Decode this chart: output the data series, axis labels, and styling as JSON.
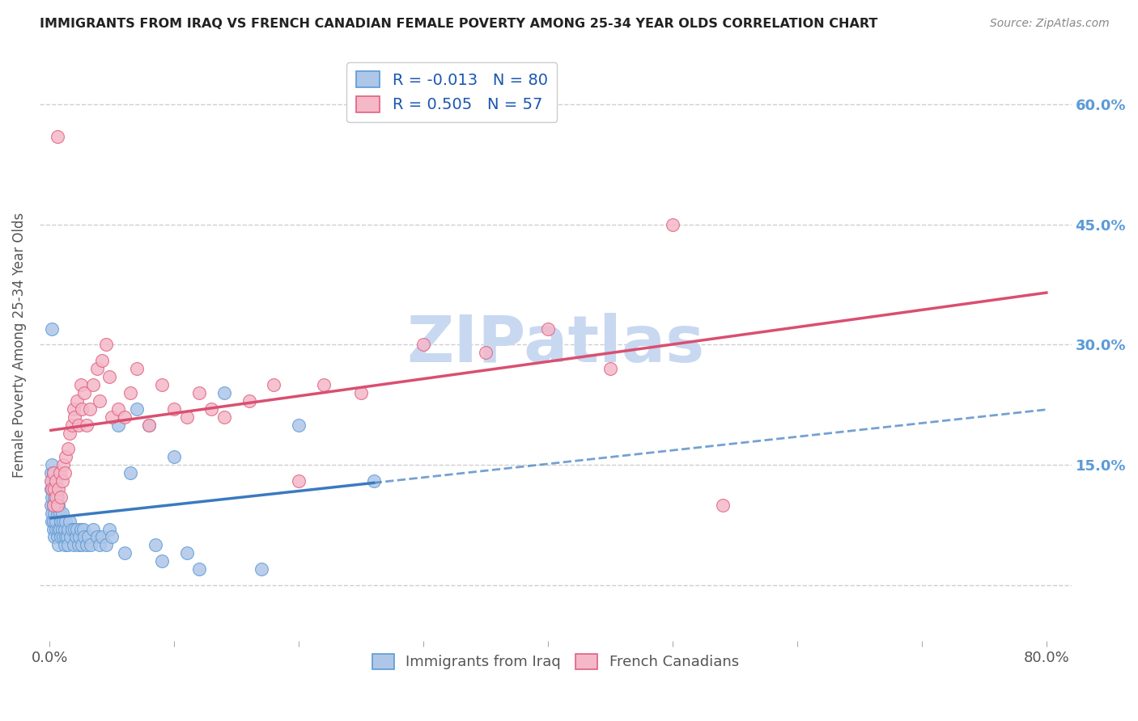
{
  "title": "IMMIGRANTS FROM IRAQ VS FRENCH CANADIAN FEMALE POVERTY AMONG 25-34 YEAR OLDS CORRELATION CHART",
  "source": "Source: ZipAtlas.com",
  "ylabel": "Female Poverty Among 25-34 Year Olds",
  "x_tick_pos": [
    0.0,
    0.1,
    0.2,
    0.3,
    0.4,
    0.5,
    0.6,
    0.7,
    0.8
  ],
  "x_tick_labels": [
    "0.0%",
    "",
    "",
    "",
    "",
    "",
    "",
    "",
    "80.0%"
  ],
  "y_tick_pos": [
    0.0,
    0.15,
    0.3,
    0.45,
    0.6
  ],
  "y_tick_labels_right": [
    "",
    "15.0%",
    "30.0%",
    "45.0%",
    "60.0%"
  ],
  "legend_series": [
    {
      "label": "Immigrants from Iraq",
      "R": "-0.013",
      "N": "80",
      "fill_color": "#aec6e8",
      "edge_color": "#5b9bd5",
      "line_color": "#3a7abf"
    },
    {
      "label": "French Canadians",
      "R": "0.505",
      "N": "57",
      "fill_color": "#f4b8c8",
      "edge_color": "#e06080",
      "line_color": "#d94f70"
    }
  ],
  "watermark": "ZIPatlas",
  "watermark_color": "#c8d8f0",
  "background_color": "#ffffff",
  "grid_color": "#bbbbbb",
  "title_color": "#222222",
  "axis_label_color": "#555555",
  "right_tick_color": "#5b9bd5",
  "xlim": [
    -0.008,
    0.82
  ],
  "ylim": [
    -0.07,
    0.67
  ],
  "series1_x": [
    0.001,
    0.001,
    0.001,
    0.002,
    0.002,
    0.002,
    0.002,
    0.002,
    0.003,
    0.003,
    0.003,
    0.003,
    0.003,
    0.004,
    0.004,
    0.004,
    0.004,
    0.005,
    0.005,
    0.005,
    0.005,
    0.006,
    0.006,
    0.006,
    0.007,
    0.007,
    0.007,
    0.008,
    0.008,
    0.009,
    0.009,
    0.01,
    0.01,
    0.011,
    0.011,
    0.012,
    0.012,
    0.013,
    0.013,
    0.014,
    0.015,
    0.015,
    0.016,
    0.017,
    0.018,
    0.019,
    0.02,
    0.021,
    0.022,
    0.023,
    0.024,
    0.025,
    0.026,
    0.027,
    0.028,
    0.03,
    0.031,
    0.033,
    0.035,
    0.038,
    0.04,
    0.042,
    0.045,
    0.048,
    0.05,
    0.055,
    0.06,
    0.065,
    0.07,
    0.08,
    0.085,
    0.09,
    0.1,
    0.11,
    0.12,
    0.14,
    0.17,
    0.2,
    0.26,
    0.002
  ],
  "series1_y": [
    0.12,
    0.14,
    0.1,
    0.09,
    0.11,
    0.13,
    0.08,
    0.15,
    0.07,
    0.1,
    0.12,
    0.08,
    0.14,
    0.06,
    0.09,
    0.11,
    0.13,
    0.07,
    0.1,
    0.12,
    0.08,
    0.06,
    0.09,
    0.11,
    0.07,
    0.05,
    0.1,
    0.07,
    0.09,
    0.06,
    0.08,
    0.07,
    0.09,
    0.06,
    0.08,
    0.05,
    0.07,
    0.06,
    0.08,
    0.06,
    0.07,
    0.05,
    0.08,
    0.06,
    0.07,
    0.05,
    0.07,
    0.06,
    0.07,
    0.05,
    0.06,
    0.07,
    0.05,
    0.07,
    0.06,
    0.05,
    0.06,
    0.05,
    0.07,
    0.06,
    0.05,
    0.06,
    0.05,
    0.07,
    0.06,
    0.2,
    0.04,
    0.14,
    0.22,
    0.2,
    0.05,
    0.03,
    0.16,
    0.04,
    0.02,
    0.24,
    0.02,
    0.2,
    0.13,
    0.32
  ],
  "series2_x": [
    0.001,
    0.002,
    0.003,
    0.003,
    0.004,
    0.005,
    0.005,
    0.006,
    0.007,
    0.008,
    0.009,
    0.01,
    0.011,
    0.012,
    0.013,
    0.015,
    0.016,
    0.018,
    0.019,
    0.02,
    0.022,
    0.023,
    0.025,
    0.026,
    0.028,
    0.03,
    0.032,
    0.035,
    0.038,
    0.04,
    0.042,
    0.045,
    0.048,
    0.05,
    0.055,
    0.06,
    0.065,
    0.07,
    0.08,
    0.09,
    0.1,
    0.11,
    0.12,
    0.13,
    0.14,
    0.16,
    0.18,
    0.2,
    0.22,
    0.25,
    0.3,
    0.35,
    0.4,
    0.45,
    0.5,
    0.54,
    0.006
  ],
  "series2_y": [
    0.13,
    0.12,
    0.14,
    0.1,
    0.12,
    0.11,
    0.13,
    0.1,
    0.12,
    0.14,
    0.11,
    0.13,
    0.15,
    0.14,
    0.16,
    0.17,
    0.19,
    0.2,
    0.22,
    0.21,
    0.23,
    0.2,
    0.25,
    0.22,
    0.24,
    0.2,
    0.22,
    0.25,
    0.27,
    0.23,
    0.28,
    0.3,
    0.26,
    0.21,
    0.22,
    0.21,
    0.24,
    0.27,
    0.2,
    0.25,
    0.22,
    0.21,
    0.24,
    0.22,
    0.21,
    0.23,
    0.25,
    0.13,
    0.25,
    0.24,
    0.3,
    0.29,
    0.32,
    0.27,
    0.45,
    0.1,
    0.56
  ]
}
